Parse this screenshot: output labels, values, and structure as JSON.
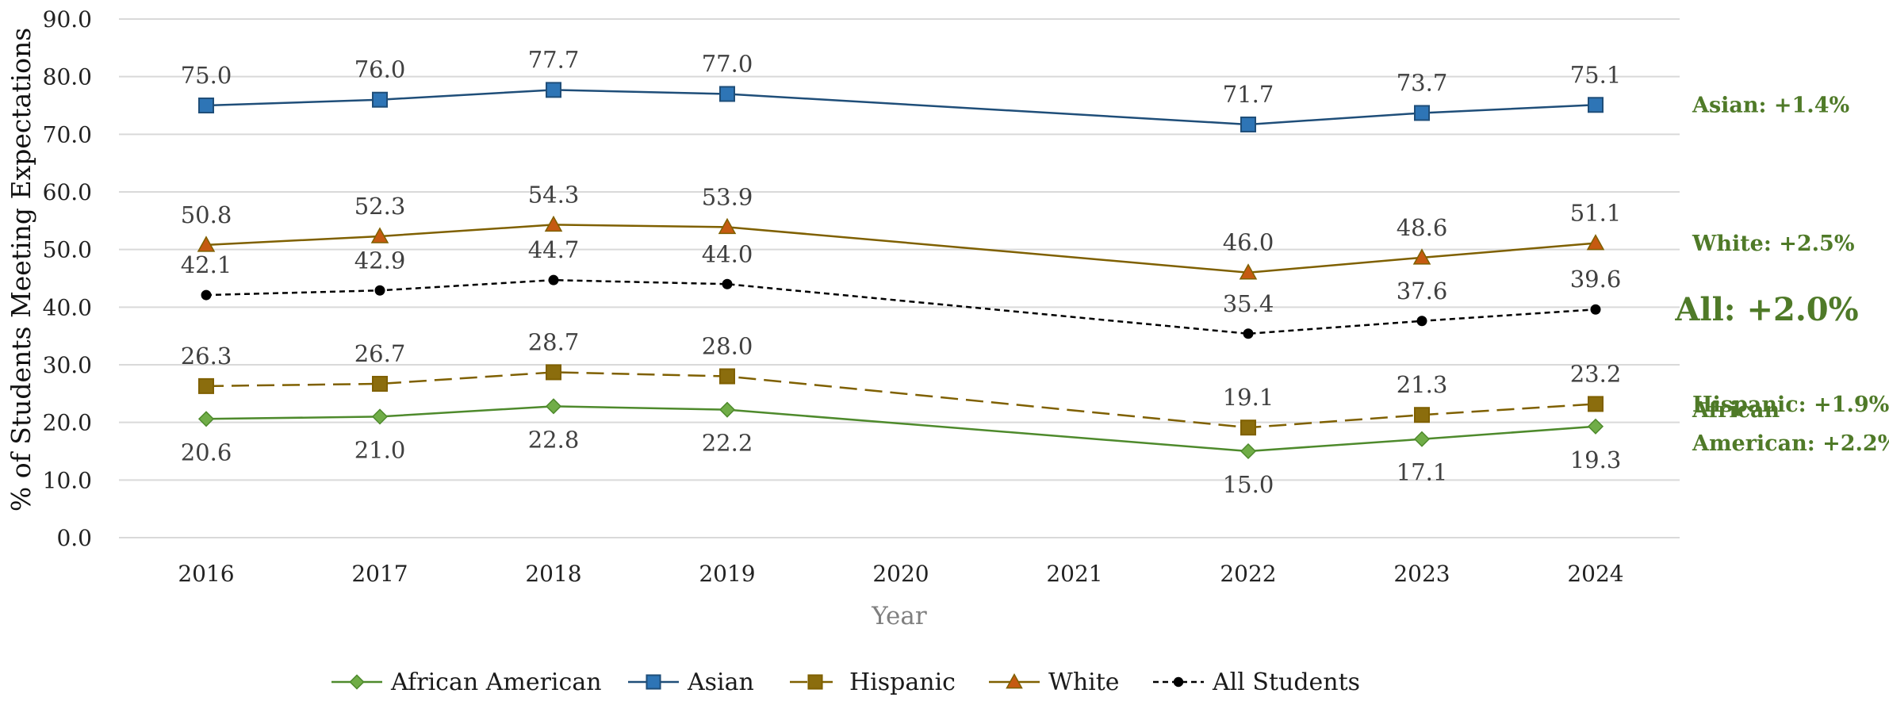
{
  "chart_data": {
    "type": "line",
    "title": "",
    "xlabel": "Year",
    "ylabel": "% of Students Meeting Expectations",
    "categories": [
      "2016",
      "2017",
      "2018",
      "2019",
      "2020",
      "2021",
      "2022",
      "2023",
      "2024"
    ],
    "ylim": [
      0,
      90
    ],
    "yticks": [
      "0.0",
      "10.0",
      "20.0",
      "30.0",
      "40.0",
      "50.0",
      "60.0",
      "70.0",
      "80.0",
      "90.0"
    ],
    "grid": true,
    "legend_position": "bottom",
    "series": [
      {
        "name": "African American",
        "key": "african_american",
        "color": "#70ad47",
        "stroke": "#4e8a2c",
        "marker": "diamond",
        "dash": "solid",
        "values": [
          20.6,
          21.0,
          22.8,
          22.2,
          null,
          null,
          15.0,
          17.1,
          19.3
        ],
        "labels": [
          "20.6",
          "21.0",
          "22.8",
          "22.2",
          "",
          "",
          "15.0",
          "17.1",
          "19.3"
        ],
        "label_position": "below"
      },
      {
        "name": "Asian",
        "key": "asian",
        "color": "#2e75b6",
        "stroke": "#1f4e79",
        "marker": "square",
        "dash": "solid",
        "values": [
          75.0,
          76.0,
          77.7,
          77.0,
          null,
          null,
          71.7,
          73.7,
          75.1
        ],
        "labels": [
          "75.0",
          "76.0",
          "77.7",
          "77.0",
          "",
          "",
          "71.7",
          "73.7",
          "75.1"
        ],
        "label_position": "above"
      },
      {
        "name": "Hispanic",
        "key": "hispanic",
        "color": "#8b6d0d",
        "stroke": "#7f6000",
        "marker": "square",
        "dash": "dashed",
        "values": [
          26.3,
          26.7,
          28.7,
          28.0,
          null,
          null,
          19.1,
          21.3,
          23.2
        ],
        "labels": [
          "26.3",
          "26.7",
          "28.7",
          "28.0",
          "",
          "",
          "19.1",
          "21.3",
          "23.2"
        ],
        "label_position": "above"
      },
      {
        "name": "White",
        "key": "white",
        "color": "#c55a11",
        "stroke": "#7f6000",
        "marker": "triangle",
        "dash": "solid",
        "values": [
          50.8,
          52.3,
          54.3,
          53.9,
          null,
          null,
          46.0,
          48.6,
          51.1
        ],
        "labels": [
          "50.8",
          "52.3",
          "54.3",
          "53.9",
          "",
          "",
          "46.0",
          "48.6",
          "51.1"
        ],
        "label_position": "above"
      },
      {
        "name": "All Students",
        "key": "all_students",
        "color": "#000000",
        "stroke": "#000000",
        "marker": "circle",
        "dash": "dotted",
        "values": [
          42.1,
          42.9,
          44.7,
          44.0,
          null,
          null,
          35.4,
          37.6,
          39.6
        ],
        "labels": [
          "42.1",
          "42.9",
          "44.7",
          "44.0",
          "",
          "",
          "35.4",
          "37.6",
          "39.6"
        ],
        "label_position": "above"
      }
    ],
    "change_annotations": [
      {
        "series": "asian",
        "lines": [
          "Asian: +1.4%"
        ],
        "emphasis": false
      },
      {
        "series": "white",
        "lines": [
          "White: +2.5%"
        ],
        "emphasis": false
      },
      {
        "series": "all_students",
        "lines": [
          "All: +2.0%"
        ],
        "emphasis": true
      },
      {
        "series": "hispanic",
        "lines": [
          "Hispanic: +1.9%"
        ],
        "emphasis": false
      },
      {
        "series": "african_american",
        "lines": [
          "African",
          "American: +2.2%"
        ],
        "emphasis": false
      }
    ]
  }
}
